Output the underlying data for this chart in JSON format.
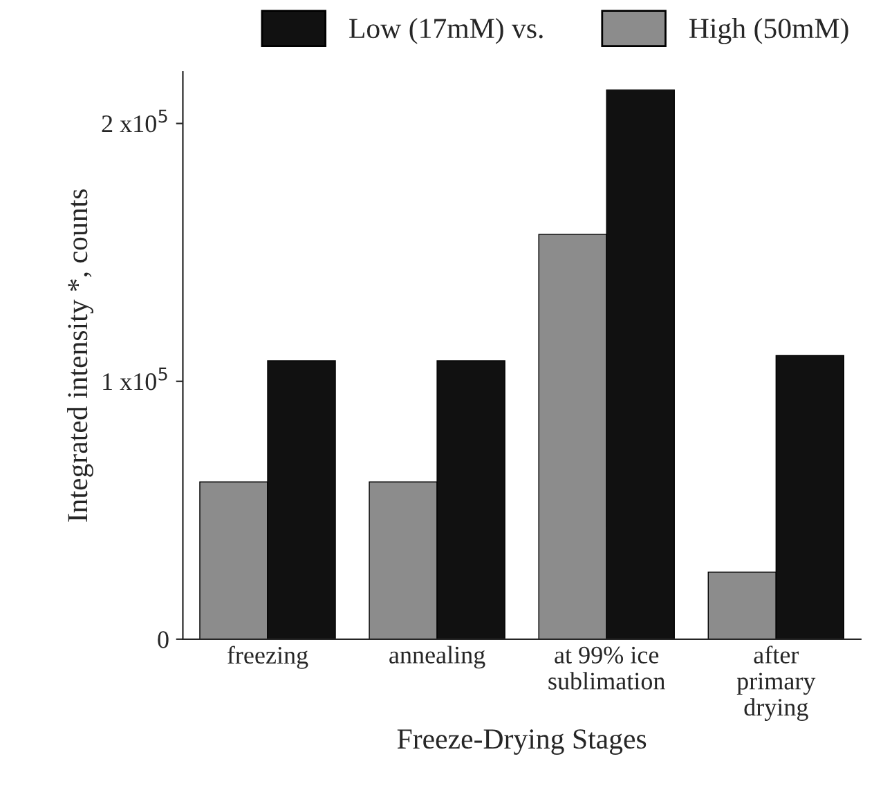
{
  "chart_data": {
    "type": "bar",
    "xlabel": "Freeze-Drying Stages",
    "ylabel": "Integrated intensity *, counts",
    "categories": [
      "freezing",
      "annealing",
      "at 99% ice\nsublimation",
      "after\nprimary\ndrying"
    ],
    "series": [
      {
        "name": "High (50mM)",
        "color": "#8c8c8c",
        "values": [
          61000,
          61000,
          157000,
          26000
        ]
      },
      {
        "name": "Low (17mM) vs.",
        "color": "#111111",
        "values": [
          108000,
          108000,
          213000,
          110000
        ]
      }
    ],
    "ylim": [
      0,
      220000
    ],
    "yticks": [
      {
        "value": 0,
        "label": "0"
      },
      {
        "value": 100000,
        "label": "1 x10$^{5}$"
      },
      {
        "value": 200000,
        "label": "2 x10$^{5}$"
      }
    ],
    "legend": "top",
    "grid": false
  }
}
